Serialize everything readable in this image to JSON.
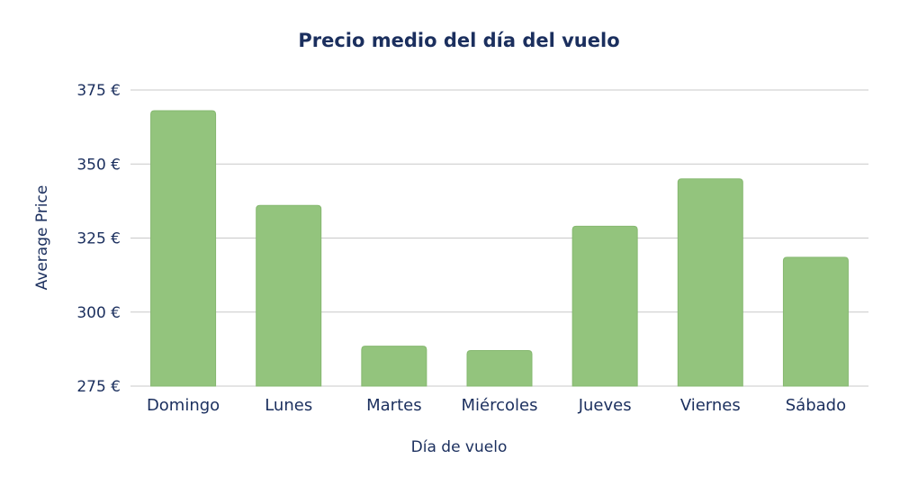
{
  "chart_data": {
    "type": "bar",
    "title": "Precio medio del día del vuelo",
    "xlabel": "Día de vuelo",
    "ylabel": "Average Price",
    "categories": [
      "Domingo",
      "Lunes",
      "Martes",
      "Miércoles",
      "Jueves",
      "Viernes",
      "Sábado"
    ],
    "values": [
      368,
      336,
      288.5,
      287,
      329,
      345,
      318.5
    ],
    "ylim": [
      275,
      375
    ],
    "yticks": [
      275,
      300,
      325,
      350,
      375
    ],
    "ytick_labels": [
      "275 €",
      "300 €",
      "325 €",
      "350 €",
      "375 €"
    ],
    "grid": true,
    "legend": "none",
    "bar_color": "#93c47d",
    "text_color": "#1b2f5e"
  }
}
